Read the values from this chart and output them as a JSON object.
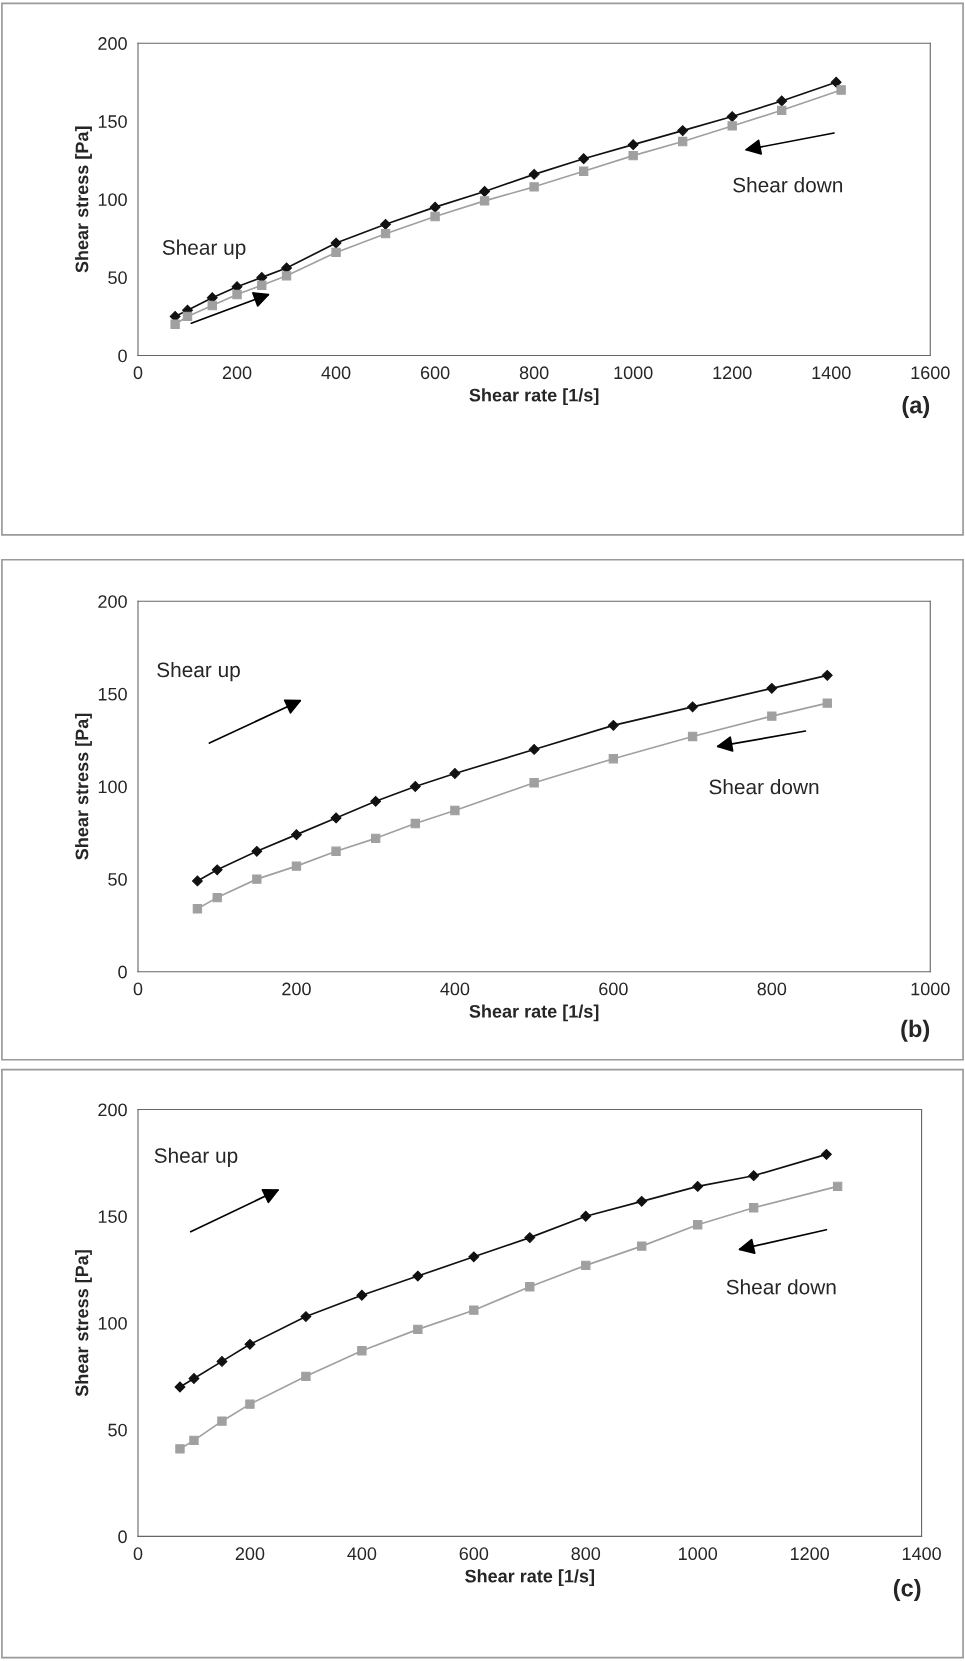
{
  "chart_data": [
    {
      "type": "line",
      "xlabel": "Shear rate [1/s]",
      "ylabel": "Shear stress [Pa]",
      "xlim": [
        0,
        1600
      ],
      "xticks": [
        0,
        200,
        400,
        600,
        800,
        1000,
        1200,
        1400,
        1600
      ],
      "ylim": [
        0,
        200
      ],
      "yticks": [
        0,
        50,
        100,
        150,
        200
      ],
      "grid": false,
      "legend": false,
      "line_style": "solid",
      "annotations": [
        "Shear up",
        "Shear down",
        "(a)"
      ],
      "series": [
        {
          "color": "#111111",
          "marker": "diamond",
          "x": [
            75,
            100,
            150,
            200,
            250,
            300,
            400,
            500,
            600,
            700,
            800,
            900,
            1000,
            1100,
            1200,
            1300,
            1410
          ],
          "values": [
            25,
            29,
            37,
            44,
            50,
            56,
            72,
            84,
            95,
            105,
            116,
            126,
            135,
            144,
            153,
            163,
            175
          ]
        },
        {
          "color": "#a0a0a0",
          "marker": "square",
          "x": [
            75,
            100,
            150,
            200,
            250,
            300,
            400,
            500,
            600,
            700,
            800,
            900,
            1000,
            1100,
            1200,
            1300,
            1420
          ],
          "values": [
            20,
            25,
            32,
            39,
            45,
            51,
            66,
            78,
            89,
            99,
            108,
            118,
            128,
            137,
            147,
            157,
            170
          ]
        }
      ]
    },
    {
      "type": "line",
      "xlabel": "Shear rate [1/s]",
      "ylabel": "Shear stress [Pa]",
      "xlim": [
        0,
        1000
      ],
      "xticks": [
        0,
        200,
        400,
        600,
        800,
        1000
      ],
      "ylim": [
        0,
        200
      ],
      "yticks": [
        0,
        50,
        100,
        150,
        200
      ],
      "grid": false,
      "legend": false,
      "line_style": "solid",
      "annotations": [
        "Shear up",
        "Shear down",
        "(b)"
      ],
      "series": [
        {
          "color": "#111111",
          "marker": "diamond",
          "x": [
            75,
            100,
            150,
            200,
            250,
            300,
            350,
            400,
            500,
            600,
            700,
            800,
            870
          ],
          "values": [
            49,
            55,
            65,
            74,
            83,
            92,
            100,
            107,
            120,
            133,
            143,
            153,
            160
          ]
        },
        {
          "color": "#a0a0a0",
          "marker": "square",
          "x": [
            75,
            100,
            150,
            200,
            250,
            300,
            350,
            400,
            500,
            600,
            700,
            800,
            870
          ],
          "values": [
            34,
            40,
            50,
            57,
            65,
            72,
            80,
            87,
            102,
            115,
            127,
            138,
            145
          ]
        }
      ]
    },
    {
      "type": "line",
      "xlabel": "Shear rate [1/s]",
      "ylabel": "Shear stress [Pa]",
      "xlim": [
        0,
        1400
      ],
      "xticks": [
        0,
        200,
        400,
        600,
        800,
        1000,
        1200,
        1400
      ],
      "ylim": [
        0,
        200
      ],
      "yticks": [
        0,
        50,
        100,
        150,
        200
      ],
      "grid": false,
      "legend": false,
      "line_style": "solid",
      "annotations": [
        "Shear up",
        "Shear down",
        "(c)"
      ],
      "series": [
        {
          "color": "#111111",
          "marker": "diamond",
          "x": [
            75,
            100,
            150,
            200,
            300,
            400,
            500,
            600,
            700,
            800,
            900,
            1000,
            1100,
            1230
          ],
          "values": [
            70,
            74,
            82,
            90,
            103,
            113,
            122,
            131,
            140,
            150,
            157,
            164,
            169,
            179
          ]
        },
        {
          "color": "#a0a0a0",
          "marker": "square",
          "x": [
            75,
            100,
            150,
            200,
            300,
            400,
            500,
            600,
            700,
            800,
            900,
            1000,
            1100,
            1250
          ],
          "values": [
            41,
            45,
            54,
            62,
            75,
            87,
            97,
            106,
            117,
            127,
            136,
            146,
            154,
            164
          ]
        }
      ]
    }
  ]
}
